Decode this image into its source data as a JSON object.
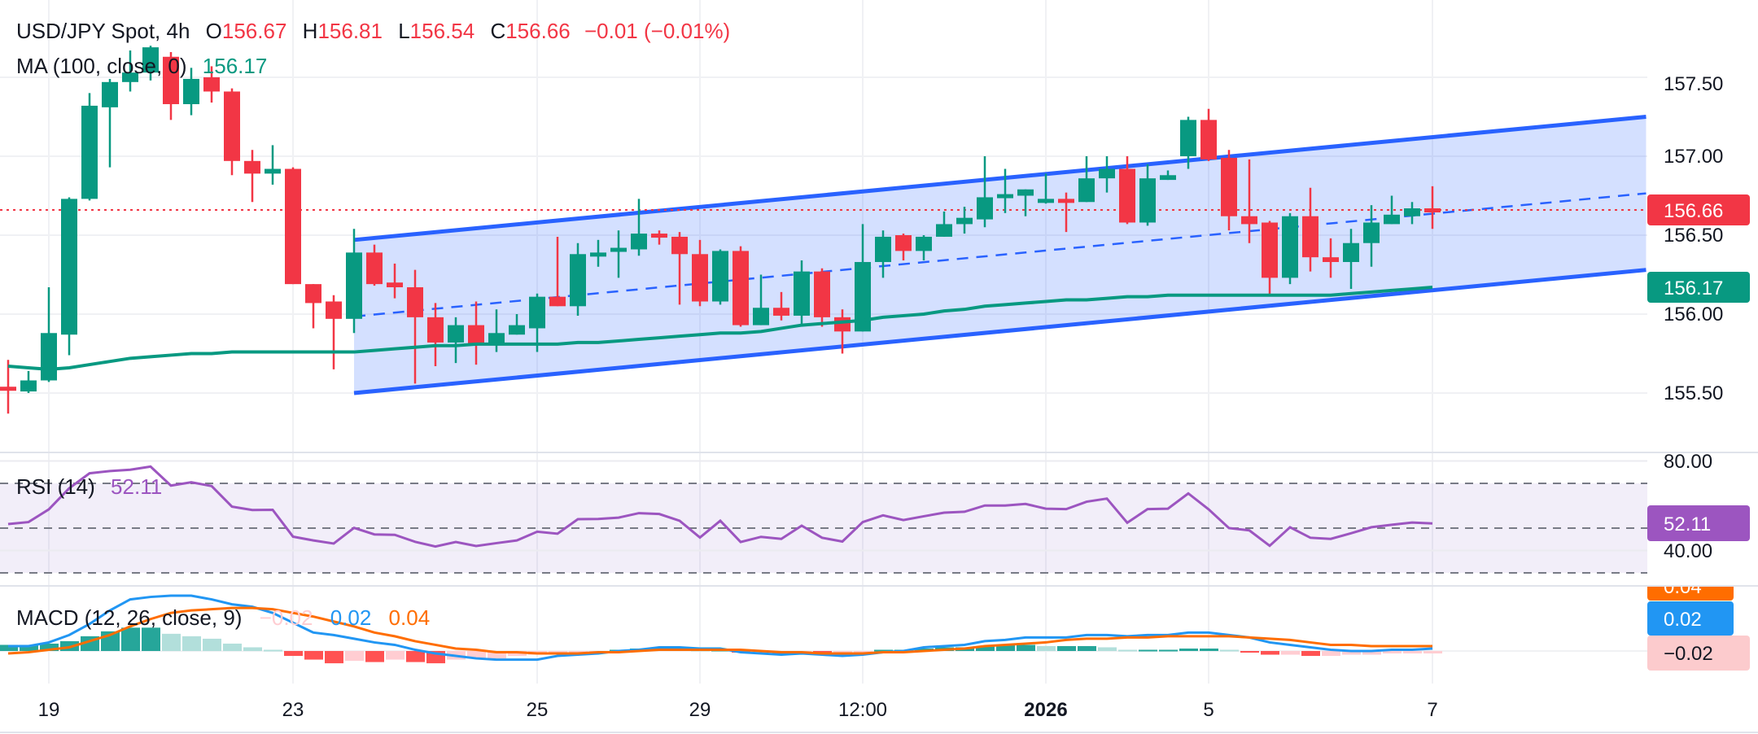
{
  "header": {
    "symbol": "USD/JPY Spot, 4h",
    "o_label": "O",
    "o_value": "156.67",
    "h_label": "H",
    "h_value": "156.81",
    "l_label": "L",
    "l_value": "156.54",
    "c_label": "C",
    "c_value": "156.66",
    "change": "−0.01 (−0.01%)"
  },
  "ma_legend": {
    "label": "MA (100, close, 0)",
    "value": "156.17"
  },
  "rsi_legend": {
    "label": "RSI (14)",
    "value": "52.11"
  },
  "macd_legend": {
    "label": "MACD (12, 26, close, 9)",
    "hist_value": "−0.02",
    "macd_value": "0.02",
    "signal_value": "0.04"
  },
  "price_axis": {
    "ticks": [
      "157.50",
      "157.00",
      "156.50",
      "156.00",
      "155.50"
    ],
    "last_price_badge": "156.66",
    "ma_badge": "156.17"
  },
  "rsi_axis": {
    "ticks": [
      "80.00",
      "40.00"
    ],
    "badge": "52.11"
  },
  "macd_axis": {
    "signal_badge": "0.04",
    "macd_badge": "0.02",
    "hist_badge": "−0.02"
  },
  "time_axis": {
    "ticks": [
      "19",
      "23",
      "25",
      "29",
      "12:00",
      "2026",
      "5",
      "7"
    ]
  },
  "colors": {
    "up": "#089981",
    "down": "#f23645",
    "channel": "#2962ff",
    "ma": "#089981",
    "rsi": "#9c55c0",
    "macd": "#2196f3",
    "signal": "#ff6d00",
    "hist_up_strong": "#26a69a",
    "hist_up_weak": "#b2dfdb",
    "hist_down_strong": "#ff5252",
    "hist_down_weak": "#ffcdd2"
  },
  "chart_data": [
    {
      "type": "candlestick",
      "title": "USD/JPY Spot, 4h",
      "ylim": [
        155.3,
        157.75
      ],
      "yticks": [
        155.5,
        156.0,
        156.5,
        157.0,
        157.5
      ],
      "time_tick_bars": [
        2,
        14,
        26,
        34,
        42,
        51,
        59,
        70
      ],
      "grid": true,
      "last_price": 156.66,
      "ohlc": [
        [
          155.54,
          155.71,
          155.37,
          155.53
        ],
        [
          155.51,
          155.64,
          155.5,
          155.58
        ],
        [
          155.58,
          156.17,
          155.57,
          155.88
        ],
        [
          155.87,
          156.74,
          155.74,
          156.73
        ],
        [
          156.73,
          157.4,
          156.72,
          157.32
        ],
        [
          157.31,
          157.49,
          156.93,
          157.47
        ],
        [
          157.47,
          157.67,
          157.41,
          157.53
        ],
        [
          157.53,
          157.7,
          157.48,
          157.69
        ],
        [
          157.63,
          157.66,
          157.23,
          157.33
        ],
        [
          157.33,
          157.56,
          157.26,
          157.49
        ],
        [
          157.5,
          157.57,
          157.34,
          157.41
        ],
        [
          157.41,
          157.43,
          156.88,
          156.97
        ],
        [
          156.97,
          157.04,
          156.71,
          156.89
        ],
        [
          156.89,
          157.07,
          156.82,
          156.92
        ],
        [
          156.92,
          156.93,
          156.19,
          156.19
        ],
        [
          156.19,
          156.19,
          155.91,
          156.07
        ],
        [
          156.08,
          156.12,
          155.65,
          155.97
        ],
        [
          155.97,
          156.54,
          155.88,
          156.39
        ],
        [
          156.39,
          156.44,
          156.18,
          156.19
        ],
        [
          156.2,
          156.32,
          156.1,
          156.17
        ],
        [
          156.17,
          156.28,
          155.56,
          155.98
        ],
        [
          155.98,
          156.07,
          155.67,
          155.82
        ],
        [
          155.82,
          155.98,
          155.69,
          155.93
        ],
        [
          155.93,
          156.08,
          155.68,
          155.81
        ],
        [
          155.81,
          156.03,
          155.76,
          155.88
        ],
        [
          155.87,
          156.0,
          155.87,
          155.93
        ],
        [
          155.91,
          156.13,
          155.76,
          156.11
        ],
        [
          156.11,
          156.49,
          156.05,
          156.05
        ],
        [
          156.05,
          156.45,
          155.99,
          156.38
        ],
        [
          156.37,
          156.47,
          156.3,
          156.39
        ],
        [
          156.4,
          156.53,
          156.23,
          156.42
        ],
        [
          156.41,
          156.73,
          156.37,
          156.51
        ],
        [
          156.51,
          156.53,
          156.44,
          156.5
        ],
        [
          156.49,
          156.52,
          156.06,
          156.38
        ],
        [
          156.38,
          156.47,
          156.05,
          156.08
        ],
        [
          156.08,
          156.41,
          156.06,
          156.4
        ],
        [
          156.4,
          156.43,
          155.92,
          155.93
        ],
        [
          155.93,
          156.25,
          155.93,
          156.04
        ],
        [
          156.04,
          156.14,
          155.96,
          155.99
        ],
        [
          155.99,
          156.34,
          155.93,
          156.27
        ],
        [
          156.27,
          156.29,
          155.92,
          155.98
        ],
        [
          155.98,
          156.03,
          155.75,
          155.89
        ],
        [
          155.89,
          156.57,
          155.89,
          156.33
        ],
        [
          156.33,
          156.53,
          156.23,
          156.49
        ],
        [
          156.5,
          156.51,
          156.34,
          156.4
        ],
        [
          156.4,
          156.5,
          156.34,
          156.49
        ],
        [
          156.49,
          156.65,
          156.49,
          156.57
        ],
        [
          156.57,
          156.68,
          156.51,
          156.61
        ],
        [
          156.6,
          157.0,
          156.55,
          156.74
        ],
        [
          156.75,
          156.92,
          156.64,
          156.76
        ],
        [
          156.75,
          156.79,
          156.62,
          156.79
        ],
        [
          156.72,
          156.89,
          156.7,
          156.73
        ],
        [
          156.73,
          156.77,
          156.52,
          156.72
        ],
        [
          156.71,
          157.0,
          156.71,
          156.86
        ],
        [
          156.86,
          157.0,
          156.77,
          156.92
        ],
        [
          156.92,
          157.0,
          156.57,
          156.58
        ],
        [
          156.58,
          156.95,
          156.56,
          156.86
        ],
        [
          156.85,
          156.91,
          156.85,
          156.88
        ],
        [
          157.0,
          157.25,
          156.92,
          157.23
        ],
        [
          157.23,
          157.3,
          156.97,
          156.98
        ],
        [
          156.99,
          157.04,
          156.53,
          156.62
        ],
        [
          156.62,
          156.98,
          156.45,
          156.57
        ],
        [
          156.58,
          156.59,
          156.12,
          156.23
        ],
        [
          156.23,
          156.64,
          156.19,
          156.62
        ],
        [
          156.62,
          156.8,
          156.27,
          156.36
        ],
        [
          156.36,
          156.48,
          156.23,
          156.33
        ],
        [
          156.33,
          156.54,
          156.16,
          156.45
        ],
        [
          156.45,
          156.69,
          156.3,
          156.58
        ],
        [
          156.57,
          156.75,
          156.57,
          156.63
        ],
        [
          156.62,
          156.71,
          156.57,
          156.67
        ],
        [
          156.67,
          156.81,
          156.54,
          156.66
        ]
      ],
      "ma100": [
        155.67,
        155.66,
        155.65,
        155.66,
        155.68,
        155.7,
        155.72,
        155.73,
        155.74,
        155.75,
        155.75,
        155.76,
        155.76,
        155.76,
        155.76,
        155.76,
        155.76,
        155.76,
        155.77,
        155.78,
        155.79,
        155.8,
        155.8,
        155.81,
        155.81,
        155.81,
        155.81,
        155.81,
        155.82,
        155.82,
        155.83,
        155.84,
        155.85,
        155.86,
        155.87,
        155.88,
        155.88,
        155.89,
        155.91,
        155.93,
        155.94,
        155.95,
        155.96,
        155.98,
        155.99,
        156.0,
        156.02,
        156.03,
        156.05,
        156.06,
        156.07,
        156.08,
        156.09,
        156.09,
        156.1,
        156.11,
        156.11,
        156.12,
        156.12,
        156.12,
        156.12,
        156.12,
        156.12,
        156.12,
        156.12,
        156.12,
        156.13,
        156.14,
        156.15,
        156.16,
        156.17
      ],
      "channel": {
        "start_bar": 17,
        "end_bar": 80.5,
        "upper": [
          156.47,
          157.25
        ],
        "lower": [
          155.5,
          156.28
        ]
      }
    },
    {
      "type": "line",
      "title": "RSI (14)",
      "ylim": [
        22,
        84
      ],
      "levels": [
        70,
        50,
        30
      ],
      "values": [
        51.8,
        52.7,
        58.4,
        67.8,
        74.5,
        75.5,
        76.1,
        77.5,
        69.0,
        70.5,
        68.8,
        59.6,
        58.1,
        58.2,
        46.2,
        44.5,
        43.1,
        50.1,
        47.2,
        47.0,
        43.9,
        41.8,
        43.8,
        42.0,
        43.3,
        44.5,
        48.4,
        47.5,
        54.0,
        54.1,
        54.7,
        56.7,
        56.3,
        53.3,
        45.8,
        53.3,
        43.8,
        46.1,
        45.2,
        51.1,
        45.7,
        44.0,
        52.7,
        55.7,
        53.6,
        55.3,
        56.9,
        57.3,
        60.1,
        60.1,
        60.8,
        58.7,
        58.5,
        61.8,
        63.2,
        52.4,
        58.5,
        58.7,
        65.5,
        58.4,
        50.0,
        49.0,
        42.1,
        50.4,
        45.7,
        45.2,
        47.7,
        50.4,
        51.5,
        52.5,
        52.11
      ]
    },
    {
      "type": "bar",
      "title": "MACD (12, 26, close, 9)",
      "macd": [
        0.04,
        0.04,
        0.07,
        0.13,
        0.22,
        0.33,
        0.42,
        0.44,
        0.45,
        0.45,
        0.42,
        0.38,
        0.36,
        0.31,
        0.23,
        0.15,
        0.13,
        0.1,
        0.07,
        0.05,
        0.01,
        -0.02,
        -0.04,
        -0.06,
        -0.07,
        -0.07,
        -0.07,
        -0.04,
        -0.03,
        -0.02,
        0.0,
        0.01,
        0.03,
        0.03,
        0.02,
        0.02,
        -0.01,
        -0.02,
        -0.03,
        -0.02,
        -0.03,
        -0.04,
        -0.03,
        -0.01,
        0.0,
        0.03,
        0.04,
        0.05,
        0.08,
        0.09,
        0.11,
        0.11,
        0.11,
        0.13,
        0.13,
        0.12,
        0.13,
        0.13,
        0.15,
        0.15,
        0.13,
        0.11,
        0.07,
        0.05,
        0.03,
        0.01,
        0.0,
        0.0,
        0.01,
        0.01,
        0.02
      ],
      "signal": [
        -0.02,
        -0.01,
        0.01,
        0.03,
        0.08,
        0.13,
        0.2,
        0.26,
        0.31,
        0.33,
        0.34,
        0.35,
        0.35,
        0.34,
        0.31,
        0.28,
        0.24,
        0.2,
        0.15,
        0.12,
        0.08,
        0.05,
        0.02,
        0.01,
        -0.01,
        -0.01,
        -0.02,
        -0.02,
        -0.02,
        -0.01,
        -0.01,
        0.0,
        0.01,
        0.01,
        0.01,
        0.01,
        0.01,
        0.0,
        -0.01,
        -0.01,
        -0.02,
        -0.02,
        -0.02,
        -0.01,
        -0.01,
        0.0,
        0.01,
        0.02,
        0.04,
        0.05,
        0.06,
        0.07,
        0.09,
        0.1,
        0.1,
        0.11,
        0.11,
        0.12,
        0.12,
        0.12,
        0.12,
        0.11,
        0.1,
        0.09,
        0.07,
        0.05,
        0.05,
        0.04,
        0.04,
        0.04,
        0.04
      ],
      "histogram": [
        0.05,
        0.05,
        0.06,
        0.08,
        0.12,
        0.16,
        0.19,
        0.19,
        0.14,
        0.12,
        0.1,
        0.06,
        0.03,
        0.01,
        -0.04,
        -0.07,
        -0.1,
        -0.08,
        -0.09,
        -0.07,
        -0.09,
        -0.1,
        -0.07,
        -0.06,
        -0.06,
        -0.04,
        -0.03,
        -0.02,
        -0.01,
        -0.01,
        0.01,
        0.02,
        0.03,
        0.03,
        0.01,
        0.01,
        -0.01,
        -0.01,
        -0.02,
        -0.01,
        -0.03,
        -0.03,
        -0.01,
        0.01,
        0.01,
        0.02,
        0.03,
        0.03,
        0.04,
        0.05,
        0.05,
        0.04,
        0.04,
        0.04,
        0.03,
        0.01,
        0.01,
        0.01,
        0.02,
        0.02,
        0.01,
        -0.01,
        -0.03,
        -0.03,
        -0.04,
        -0.04,
        -0.03,
        -0.03,
        -0.02,
        -0.02,
        -0.02
      ]
    }
  ]
}
